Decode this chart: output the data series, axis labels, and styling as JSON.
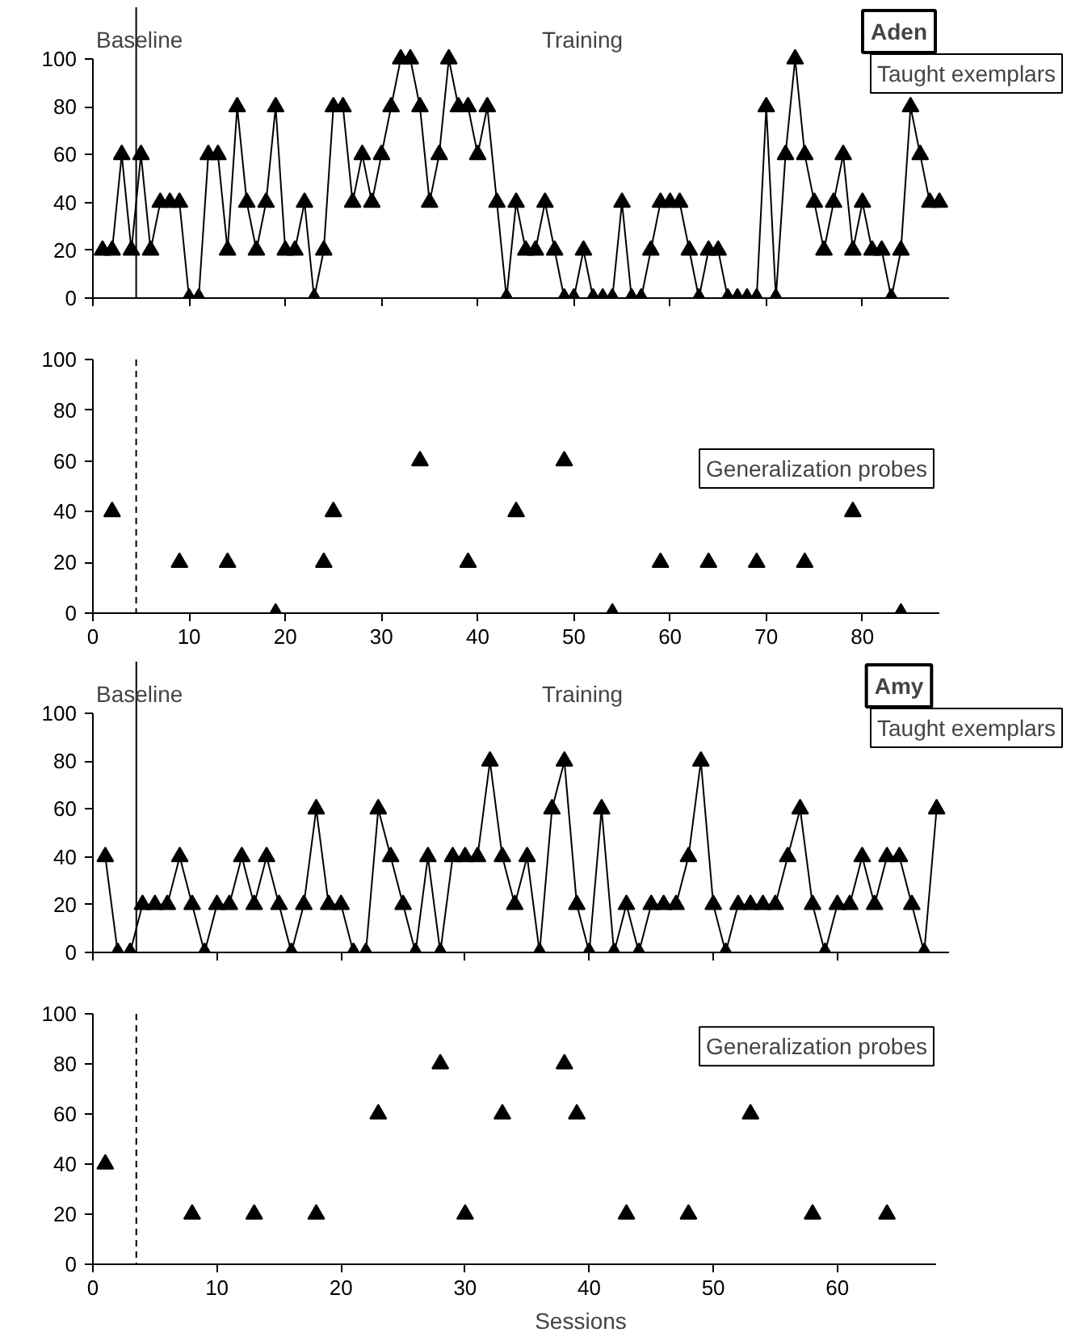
{
  "chart_data": [
    {
      "type": "line",
      "title": "Aden",
      "x": [
        1,
        2,
        3,
        4,
        5,
        6,
        7,
        8,
        9,
        10,
        11,
        12,
        13,
        14,
        15,
        16,
        17,
        18,
        19,
        20,
        21,
        22,
        23,
        24,
        25,
        26,
        27,
        28,
        29,
        30,
        31,
        32,
        33,
        34,
        35,
        36,
        37,
        38,
        39,
        40,
        41,
        42,
        43,
        44,
        45,
        46,
        47,
        48,
        49,
        50,
        51,
        52,
        53,
        54,
        55,
        56,
        57,
        58,
        59,
        60,
        61,
        62,
        63,
        64,
        65,
        66,
        67,
        68,
        69,
        70,
        71,
        72,
        73,
        74,
        75,
        76,
        77,
        78,
        79,
        80,
        81,
        82,
        83,
        84,
        85,
        86,
        87,
        88
      ],
      "series": [
        {
          "color": "#000000",
          "values": [
            20,
            20,
            60,
            20,
            60,
            20,
            40,
            40,
            40,
            0,
            0,
            60,
            60,
            20,
            80,
            40,
            20,
            40,
            80,
            20,
            20,
            40,
            0,
            20,
            80,
            80,
            40,
            60,
            40,
            60,
            80,
            100,
            100,
            80,
            40,
            60,
            100,
            80,
            80,
            60,
            80,
            40,
            0,
            40,
            20,
            20,
            40,
            20,
            0,
            0,
            20,
            0,
            0,
            0,
            40,
            0,
            0,
            20,
            40,
            40,
            40,
            20,
            0,
            20,
            20,
            0,
            0,
            0,
            0,
            80,
            0,
            60,
            100,
            60,
            40,
            20,
            40,
            60,
            20,
            40,
            20,
            20,
            0,
            20,
            80,
            60,
            40,
            40
          ]
        }
      ],
      "marker": "triangle",
      "line_style": "solid",
      "xlim": [
        0,
        89
      ],
      "xticks": [
        0,
        10,
        20,
        30,
        40,
        50,
        60,
        70,
        80
      ],
      "ylim": [
        0,
        100
      ],
      "yticks": [
        0,
        20,
        40,
        60,
        80,
        100
      ],
      "tick_labels": "y",
      "ref_lines": [
        {
          "axis": "x",
          "value": 4.5,
          "label": "Baseline",
          "line_style": "solid"
        }
      ],
      "annotations": [
        "Training",
        "Taught exemplars"
      ]
    },
    {
      "type": "scatter",
      "x": [
        2,
        9,
        14,
        19,
        24,
        25,
        34,
        39,
        44,
        49,
        54,
        59,
        64,
        69,
        74,
        79,
        84
      ],
      "series": [
        {
          "color": "#000000",
          "values": [
            40,
            20,
            20,
            0,
            20,
            40,
            60,
            20,
            40,
            60,
            0,
            20,
            20,
            20,
            20,
            40,
            0
          ]
        }
      ],
      "marker": "triangle",
      "xlim": [
        0,
        88
      ],
      "xticks": [
        0,
        10,
        20,
        30,
        40,
        50,
        60,
        70,
        80
      ],
      "ylim": [
        0,
        100
      ],
      "yticks": [
        0,
        20,
        40,
        60,
        80,
        100
      ],
      "ref_lines": [
        {
          "axis": "x",
          "value": 4.5,
          "label": null,
          "line_style": "dashed"
        }
      ],
      "annotations": [
        "Generalization probes"
      ]
    },
    {
      "type": "line",
      "title": "Amy",
      "x": [
        1,
        2,
        3,
        4,
        5,
        6,
        7,
        8,
        9,
        10,
        11,
        12,
        13,
        14,
        15,
        16,
        17,
        18,
        19,
        20,
        21,
        22,
        23,
        24,
        25,
        26,
        27,
        28,
        29,
        30,
        31,
        32,
        33,
        34,
        35,
        36,
        37,
        38,
        39,
        40,
        41,
        42,
        43,
        44,
        45,
        46,
        47,
        48,
        49,
        50,
        51,
        52,
        53,
        54,
        55,
        56,
        57,
        58,
        59,
        60,
        61,
        62,
        63,
        64,
        65,
        66,
        67,
        68
      ],
      "series": [
        {
          "color": "#000000",
          "values": [
            40,
            0,
            0,
            20,
            20,
            20,
            40,
            20,
            0,
            20,
            20,
            40,
            20,
            40,
            20,
            0,
            20,
            60,
            20,
            20,
            0,
            0,
            60,
            40,
            20,
            0,
            40,
            0,
            40,
            40,
            40,
            80,
            40,
            20,
            40,
            0,
            60,
            80,
            20,
            0,
            60,
            0,
            20,
            0,
            20,
            20,
            20,
            40,
            80,
            20,
            0,
            20,
            20,
            20,
            20,
            40,
            60,
            20,
            0,
            20,
            20,
            40,
            20,
            40,
            40,
            20,
            0,
            60
          ]
        }
      ],
      "marker": "triangle",
      "line_style": "solid",
      "xlim": [
        0,
        69
      ],
      "xticks": [
        0,
        10,
        20,
        30,
        40,
        50,
        60
      ],
      "ylim": [
        0,
        100
      ],
      "yticks": [
        0,
        20,
        40,
        60,
        80,
        100
      ],
      "tick_labels": "y",
      "ref_lines": [
        {
          "axis": "x",
          "value": 3.5,
          "label": "Baseline",
          "line_style": "solid"
        }
      ],
      "annotations": [
        "Training",
        "Taught exemplars"
      ]
    },
    {
      "type": "scatter",
      "x": [
        1,
        8,
        13,
        18,
        23,
        28,
        30,
        33,
        38,
        39,
        43,
        48,
        53,
        58,
        64
      ],
      "series": [
        {
          "color": "#000000",
          "values": [
            40,
            20,
            20,
            20,
            60,
            80,
            20,
            60,
            80,
            60,
            20,
            20,
            60,
            20,
            20
          ]
        }
      ],
      "marker": "triangle",
      "xlim": [
        0,
        68
      ],
      "xticks": [
        0,
        10,
        20,
        30,
        40,
        50,
        60
      ],
      "ylim": [
        0,
        100
      ],
      "yticks": [
        0,
        20,
        40,
        60,
        80,
        100
      ],
      "xlabel": "Sessions",
      "ref_lines": [
        {
          "axis": "x",
          "value": 3.5,
          "label": null,
          "line_style": "dashed"
        }
      ],
      "annotations": [
        "Generalization probes"
      ]
    }
  ]
}
